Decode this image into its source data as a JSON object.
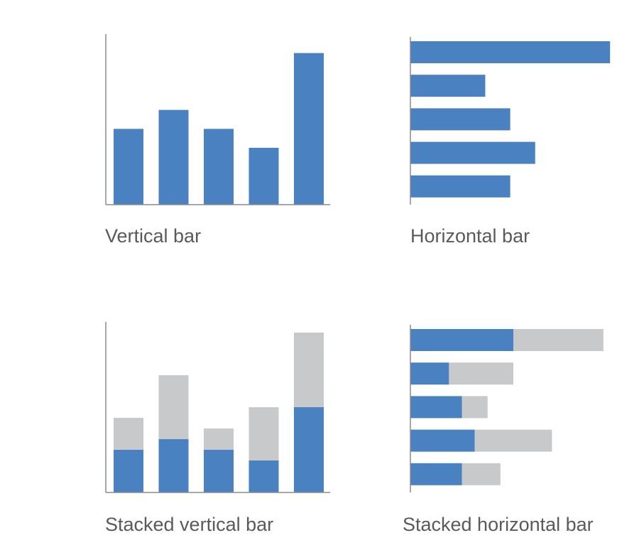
{
  "colors": {
    "primary": "#4a81c1",
    "secondary": "#c8c9cb",
    "axis": "#8c8c8c",
    "caption": "#5a5a5a"
  },
  "chart_data": [
    {
      "type": "bar",
      "orientation": "vertical",
      "stacked": false,
      "title": "Vertical bar",
      "categories": [
        "",
        "",
        "",
        "",
        ""
      ],
      "series": [
        {
          "values": [
            4,
            5,
            4,
            3,
            8
          ]
        }
      ],
      "ylim": [
        0,
        9
      ],
      "grid": false
    },
    {
      "type": "bar",
      "orientation": "horizontal",
      "stacked": false,
      "title": "Horizontal bar",
      "categories": [
        "",
        "",
        "",
        "",
        ""
      ],
      "series": [
        {
          "values": [
            8,
            3,
            4,
            5,
            4
          ]
        }
      ],
      "xlim": [
        0,
        8.25
      ],
      "grid": false
    },
    {
      "type": "bar",
      "orientation": "vertical",
      "stacked": true,
      "title": "Stacked vertical bar",
      "categories": [
        "",
        "",
        "",
        "",
        ""
      ],
      "series": [
        {
          "values": [
            4,
            5,
            4,
            3,
            8
          ]
        },
        {
          "values": [
            3,
            6,
            2,
            5,
            7
          ]
        }
      ],
      "ylim": [
        0,
        16
      ],
      "grid": false
    },
    {
      "type": "bar",
      "orientation": "horizontal",
      "stacked": true,
      "title": "Stacked horizontal bar",
      "categories": [
        "",
        "",
        "",
        "",
        ""
      ],
      "series": [
        {
          "values": [
            8,
            3,
            4,
            5,
            4
          ]
        },
        {
          "values": [
            7,
            5,
            2,
            6,
            3
          ]
        }
      ],
      "xlim": [
        0,
        16
      ],
      "grid": false
    }
  ]
}
